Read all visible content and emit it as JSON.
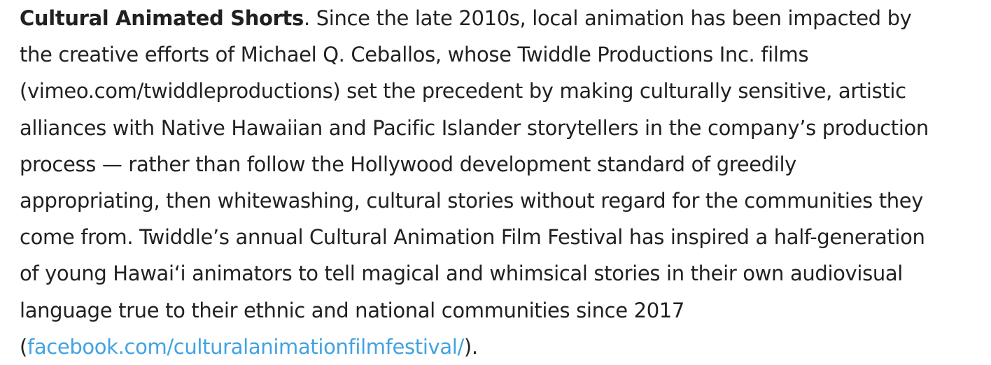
{
  "page": {
    "background": "#ffffff",
    "text_color": "#202122",
    "link_color": "#41a2e2"
  },
  "content": {
    "line1": {
      "bold": "Cultural Animated Shorts",
      "rest": ". Since the late 2010s, local animation has been impacted by"
    },
    "line2": "the creative efforts of Michael Q. Ceballos, whose Twiddle Productions Inc. films",
    "line3": "(vimeo.com/twiddleproductions) set the precedent by making culturally sensitive, artistic",
    "line4": "alliances with Native Hawaiian and Pacific Islander storytellers in the company’s production",
    "line5": "process — rather than follow the Hollywood development standard of greedily",
    "line6": "appropriating, then whitewashing, cultural stories without regard for the communities they",
    "line7": "come from. Twiddle’s annual Cultural Animation Film Festival has inspired a half-generation",
    "line8": "of young Hawaiʻi animators to tell magical and whimsical stories in their own audiovisual",
    "line9": "language true to their ethnic and national communities since 2017",
    "line10": {
      "open_paren": "(",
      "link": "facebook.com/culturalanimationfilmfestival/",
      "close": ")."
    }
  }
}
